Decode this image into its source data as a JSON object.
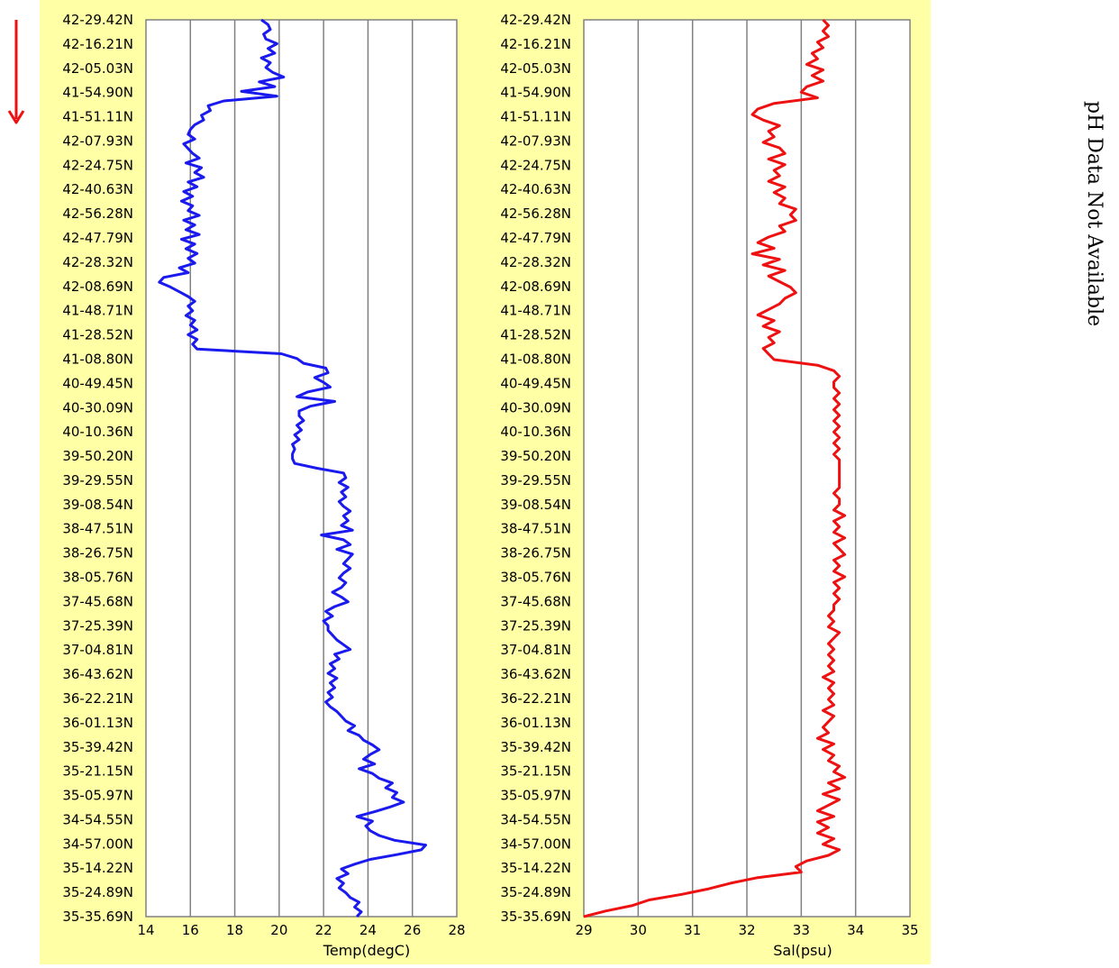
{
  "side_note": "pH Data Not Available",
  "arrow_color": "#ee1111",
  "chart_data": [
    {
      "type": "line",
      "xlabel": "Temp(degC)",
      "ylabel": "",
      "xlim": [
        14,
        28
      ],
      "xticks": [
        14,
        16,
        18,
        20,
        22,
        24,
        26,
        28
      ],
      "grid": true,
      "line_color": "#1a1aee",
      "categories": [
        "42-29.42N",
        "42-16.21N",
        "42-05.03N",
        "41-54.90N",
        "41-51.11N",
        "42-07.93N",
        "42-24.75N",
        "42-40.63N",
        "42-56.28N",
        "42-47.79N",
        "42-28.32N",
        "42-08.69N",
        "41-48.71N",
        "41-28.52N",
        "41-08.80N",
        "40-49.45N",
        "40-30.09N",
        "40-10.36N",
        "39-50.20N",
        "39-29.55N",
        "39-08.54N",
        "38-47.51N",
        "38-26.75N",
        "38-05.76N",
        "37-45.68N",
        "37-25.39N",
        "37-04.81N",
        "36-43.62N",
        "36-22.21N",
        "36-01.13N",
        "35-39.42N",
        "35-21.15N",
        "35-05.97N",
        "34-54.55N",
        "34-57.00N",
        "35-14.22N",
        "35-24.89N",
        "35-35.69N"
      ],
      "series": [
        {
          "x": [
            19.2,
            19.5,
            19.6,
            19.3,
            19.4,
            19.9,
            19.5,
            19.8,
            19.2,
            19.6,
            19.4,
            19.7,
            20.2,
            19.1,
            19.8,
            18.3,
            19.9,
            17.5,
            16.8,
            16.9,
            16.5,
            16.6,
            16.2,
            16.0,
            15.9,
            16.2,
            15.7,
            15.9,
            16.1,
            16.4,
            15.8,
            16.5,
            16.2,
            16.6,
            15.9,
            16.3,
            15.7,
            16.1,
            15.6,
            16.1,
            15.9,
            16.4,
            15.7,
            16.2,
            15.8,
            16.4,
            15.6,
            16.2,
            15.8,
            16.3,
            15.9,
            16.2,
            15.5,
            15.9,
            14.8,
            14.6,
            15.1,
            15.5,
            15.9,
            16.2,
            15.9,
            16.1,
            15.8,
            16.2,
            16.0,
            16.3,
            15.9,
            16.3,
            16.1,
            16.3,
            20.1,
            20.8,
            21.1,
            22.1,
            22.2,
            21.6,
            22.0,
            22.3,
            21.3,
            20.8,
            22.5,
            21.4,
            20.9,
            20.9,
            21.1,
            20.8,
            21.0,
            20.7,
            20.9,
            20.6,
            20.7,
            20.6,
            20.6,
            20.7,
            21.7,
            22.9,
            23.0,
            22.7,
            23.1,
            22.8,
            23.0,
            22.7,
            22.9,
            23.2,
            22.9,
            23.1,
            22.8,
            23.3,
            21.9,
            22.9,
            23.2,
            22.6,
            23.3,
            23.1,
            22.9,
            23.2,
            22.9,
            22.7,
            23.0,
            22.8,
            22.4,
            22.8,
            23.1,
            22.5,
            22.1,
            22.4,
            22.0,
            22.2,
            22.2,
            22.4,
            22.6,
            22.9,
            23.2,
            22.5,
            22.7,
            22.3,
            22.5,
            22.2,
            22.6,
            22.3,
            22.5,
            22.2,
            22.4,
            22.1,
            22.3,
            22.6,
            22.8,
            23.0,
            23.4,
            23.1,
            23.6,
            23.8,
            24.2,
            24.5,
            24.1,
            23.8,
            24.3,
            23.6,
            24.2,
            24.5,
            25.1,
            24.8,
            25.3,
            25.1,
            25.6,
            25.0,
            24.3,
            23.5,
            24.2,
            23.9,
            24.1,
            24.5,
            25.2,
            26.6,
            26.4,
            25.3,
            24.1,
            23.4,
            22.8,
            23.1,
            22.6,
            22.9,
            22.7,
            23.0,
            23.2,
            23.6,
            23.4,
            23.7,
            23.5
          ]
        }
      ]
    },
    {
      "type": "line",
      "xlabel": "Sal(psu)",
      "ylabel": "",
      "xlim": [
        29,
        35
      ],
      "xticks": [
        29,
        30,
        31,
        32,
        33,
        34,
        35
      ],
      "grid": true,
      "line_color": "#ee1111",
      "categories": [
        "42-29.42N",
        "42-16.21N",
        "42-05.03N",
        "41-54.90N",
        "41-51.11N",
        "42-07.93N",
        "42-24.75N",
        "42-40.63N",
        "42-56.28N",
        "42-47.79N",
        "42-28.32N",
        "42-08.69N",
        "41-48.71N",
        "41-28.52N",
        "41-08.80N",
        "40-49.45N",
        "40-30.09N",
        "40-10.36N",
        "39-50.20N",
        "39-29.55N",
        "39-08.54N",
        "38-47.51N",
        "38-26.75N",
        "38-05.76N",
        "37-45.68N",
        "37-25.39N",
        "37-04.81N",
        "36-43.62N",
        "36-22.21N",
        "36-01.13N",
        "35-39.42N",
        "35-21.15N",
        "35-05.97N",
        "34-54.55N",
        "34-57.00N",
        "35-14.22N",
        "35-24.89N",
        "35-35.69N"
      ],
      "series": [
        {
          "x": [
            33.4,
            33.5,
            33.4,
            33.5,
            33.3,
            33.4,
            33.2,
            33.3,
            33.1,
            33.4,
            33.2,
            33.4,
            33.1,
            33.0,
            33.3,
            32.5,
            32.2,
            32.1,
            32.3,
            32.6,
            32.4,
            32.5,
            32.3,
            32.6,
            32.7,
            32.4,
            32.7,
            32.5,
            32.6,
            32.4,
            32.7,
            32.5,
            32.7,
            32.6,
            32.9,
            32.8,
            32.9,
            32.6,
            32.7,
            32.4,
            32.2,
            32.5,
            32.1,
            32.6,
            32.3,
            32.7,
            32.4,
            32.6,
            32.8,
            32.9,
            32.7,
            32.6,
            32.4,
            32.2,
            32.5,
            32.3,
            32.6,
            32.4,
            32.5,
            32.3,
            32.4,
            32.5,
            33.3,
            33.6,
            33.7,
            33.6,
            33.6,
            33.7,
            33.6,
            33.7,
            33.6,
            33.7,
            33.6,
            33.7,
            33.6,
            33.7,
            33.6,
            33.7,
            33.6,
            33.7,
            33.7,
            33.7,
            33.7,
            33.7,
            33.7,
            33.6,
            33.7,
            33.7,
            33.6,
            33.8,
            33.6,
            33.7,
            33.6,
            33.8,
            33.6,
            33.7,
            33.8,
            33.6,
            33.7,
            33.6,
            33.8,
            33.6,
            33.7,
            33.6,
            33.7,
            33.6,
            33.6,
            33.5,
            33.6,
            33.5,
            33.7,
            33.6,
            33.5,
            33.6,
            33.5,
            33.6,
            33.5,
            33.6,
            33.4,
            33.6,
            33.5,
            33.6,
            33.5,
            33.6,
            33.4,
            33.6,
            33.5,
            33.4,
            33.5,
            33.3,
            33.6,
            33.4,
            33.6,
            33.5,
            33.7,
            33.6,
            33.8,
            33.5,
            33.7,
            33.4,
            33.7,
            33.5,
            33.3,
            33.6,
            33.3,
            33.5,
            33.3,
            33.6,
            33.4,
            33.7,
            33.5,
            33.1,
            32.9,
            33.0,
            32.2,
            31.7,
            31.3,
            30.8,
            30.2,
            29.9,
            29.4,
            29.0
          ]
        }
      ]
    }
  ]
}
